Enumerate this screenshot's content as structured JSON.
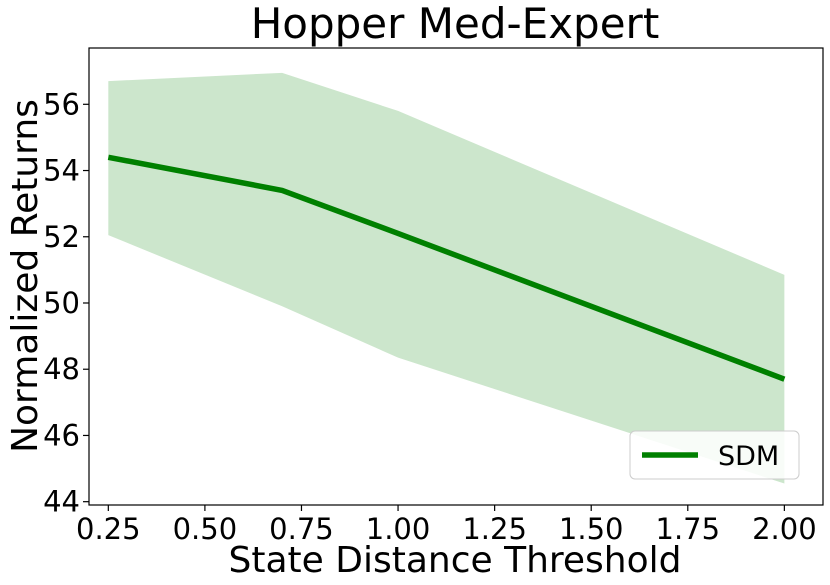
{
  "chart_data": {
    "type": "line",
    "title": "Hopper Med-Expert",
    "xlabel": "State Distance Threshold",
    "ylabel": "Normalized Returns",
    "xlim": [
      0.2,
      2.1
    ],
    "ylim": [
      43.9,
      57.7
    ],
    "x_ticks": [
      0.25,
      0.5,
      0.75,
      1.0,
      1.25,
      1.5,
      1.75,
      2.0
    ],
    "x_tick_labels": [
      "0.25",
      "0.50",
      "0.75",
      "1.00",
      "1.25",
      "1.50",
      "1.75",
      "2.00"
    ],
    "y_ticks": [
      44,
      46,
      48,
      50,
      52,
      54,
      56
    ],
    "y_tick_labels": [
      "44",
      "46",
      "48",
      "50",
      "52",
      "54",
      "56"
    ],
    "grid": false,
    "legend_position": "bottom-right",
    "series": [
      {
        "name": "SDM",
        "color": "#008000",
        "band_color": "#cce6cc",
        "x": [
          0.25,
          0.7,
          1.0,
          2.0
        ],
        "values": [
          54.4,
          53.4,
          52.1,
          47.7
        ],
        "upper": [
          56.7,
          56.95,
          55.8,
          50.85
        ],
        "lower": [
          52.05,
          49.9,
          48.35,
          44.55
        ]
      }
    ]
  }
}
